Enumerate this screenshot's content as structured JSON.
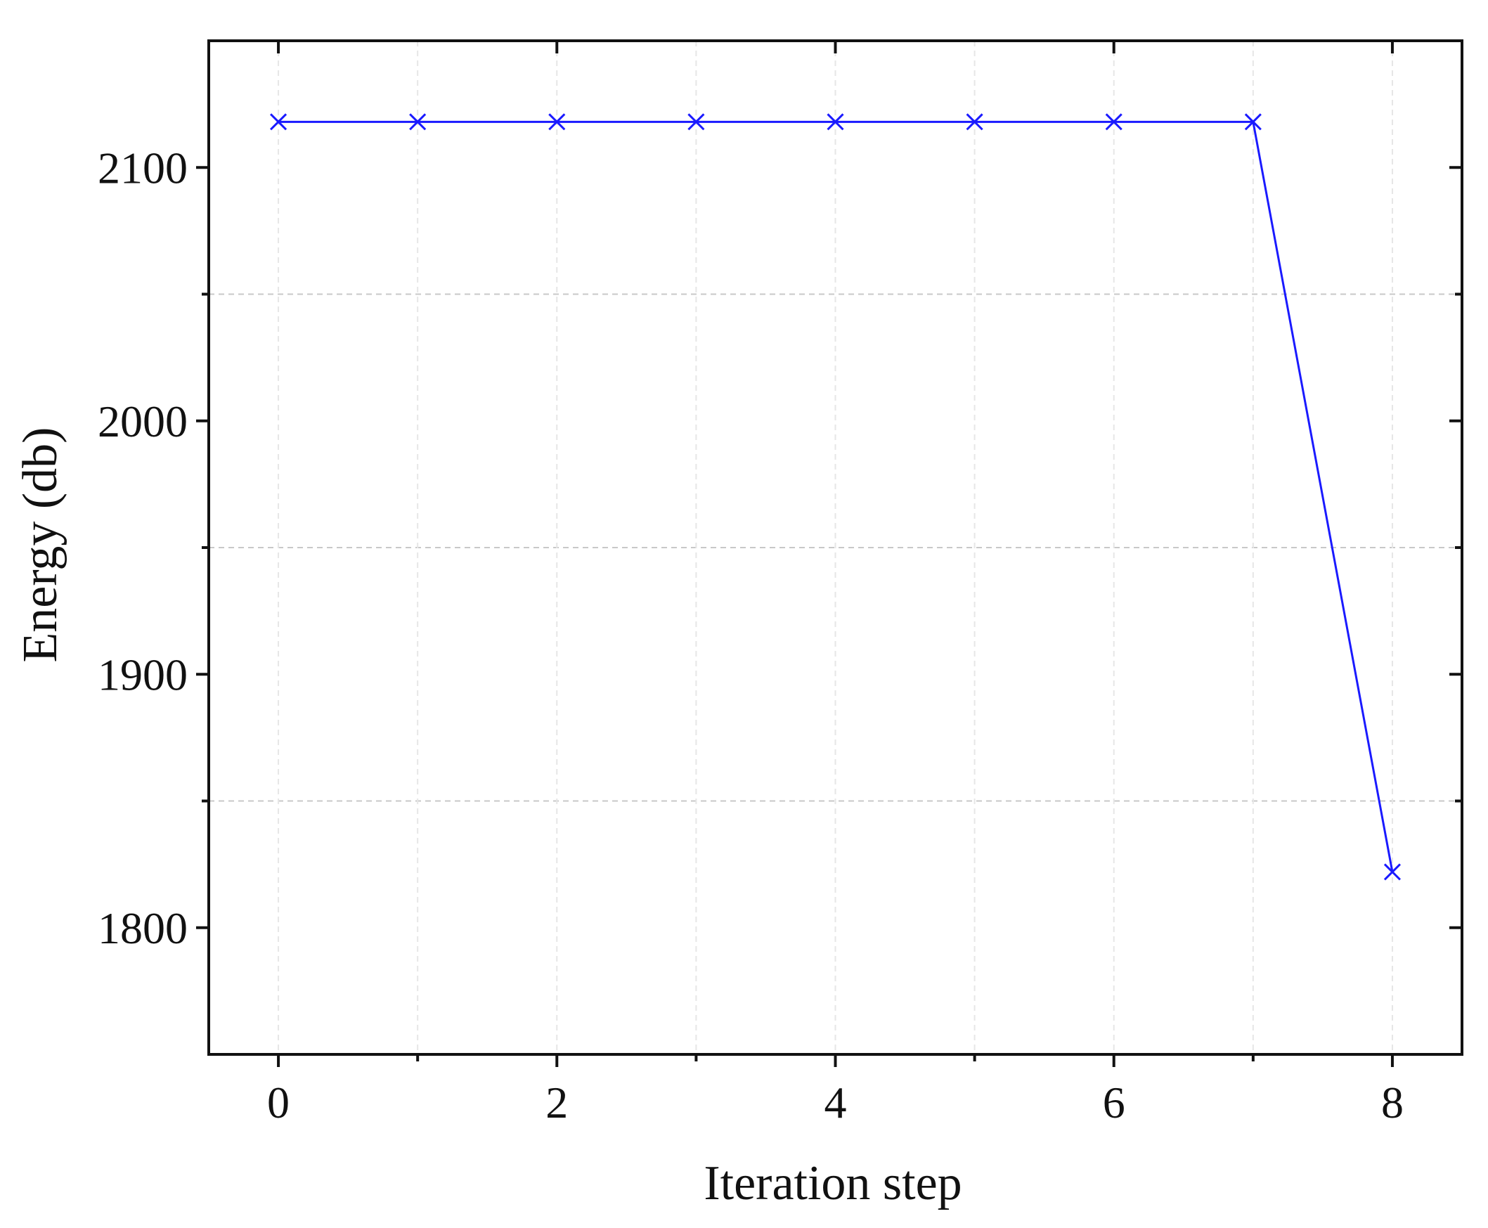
{
  "chart_data": {
    "type": "line",
    "title": "",
    "xlabel": "Iteration step",
    "ylabel": "Energy (db)",
    "xlim": [
      -0.5,
      8.5
    ],
    "ylim": [
      1750,
      2150
    ],
    "x_ticks": [
      0,
      2,
      4,
      6,
      8
    ],
    "x_tick_labels": [
      "0",
      "2",
      "4",
      "6",
      "8"
    ],
    "x_minor_ticks": [
      1,
      3,
      5,
      7
    ],
    "y_ticks": [
      1800,
      1900,
      2000,
      2100
    ],
    "y_tick_labels": [
      "1800",
      "1900",
      "2000",
      "2100"
    ],
    "y_minor_ticks": [
      1850,
      1950,
      2050
    ],
    "grid": true,
    "series": [
      {
        "color": "#1a1aff",
        "marker": "x",
        "x": [
          0,
          1,
          2,
          3,
          4,
          5,
          6,
          7,
          8
        ],
        "values": [
          2118,
          2118,
          2118,
          2118,
          2118,
          2118,
          2118,
          2118,
          1822
        ]
      }
    ],
    "colors": {
      "axis": "#111111",
      "grid": "#c8c8c8",
      "line": "#1a1aff"
    }
  }
}
